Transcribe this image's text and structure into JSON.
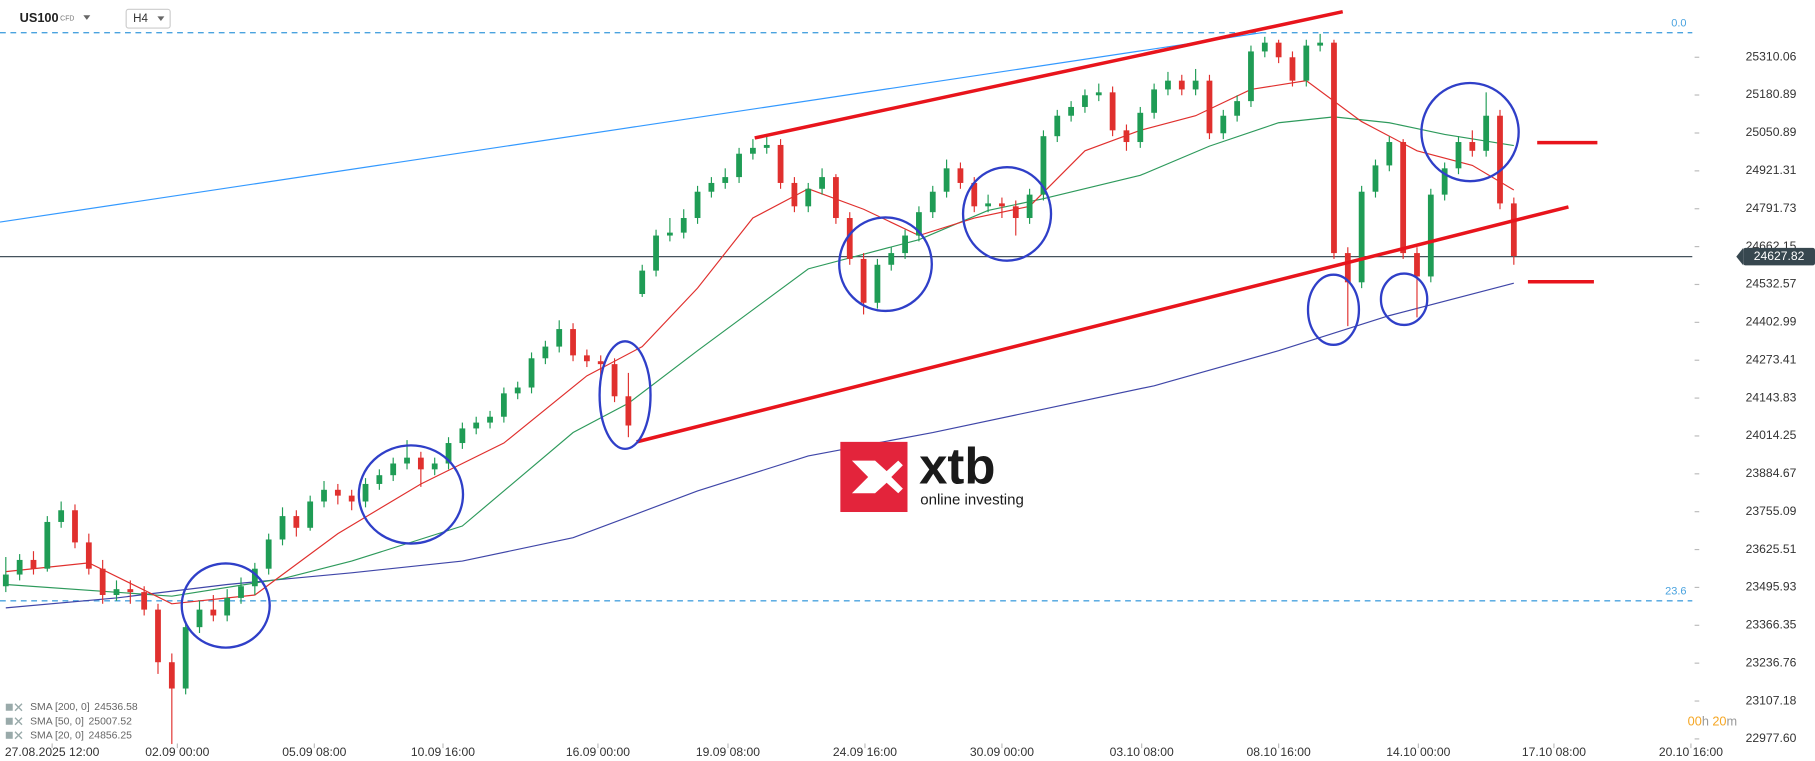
{
  "toolbar": {
    "symbol": "US100",
    "instrument": "CFD",
    "timeframe": "H4"
  },
  "logo": {
    "name": "xtb",
    "tagline": "online investing"
  },
  "timer": [
    "00",
    "h",
    "20",
    "m"
  ],
  "chart_data": {
    "type": "candlestick",
    "up_color": "#1f9c55",
    "down_color": "#e0302e",
    "grid": false,
    "xlim": [
      -0.42,
      121.9
    ],
    "ylim": [
      22946,
      25506
    ],
    "yticks": [
      25310.06,
      25180.89,
      25050.89,
      24921.31,
      24791.73,
      24662.15,
      24532.57,
      24402.99,
      24273.41,
      24143.83,
      24014.25,
      23884.67,
      23755.09,
      23625.51,
      23495.93,
      23366.35,
      23236.76,
      23107.18,
      {
        "value": 22977.6,
        "label": "22977.60"
      }
    ],
    "xticks": [
      {
        "value": 3.35,
        "label": "27.08.2025  12:00"
      },
      {
        "value": 12.4,
        "label": "02.09 00:00"
      },
      {
        "value": 22.3,
        "label": "05.09 08:00"
      },
      {
        "value": 31.6,
        "label": "10.09 16:00"
      },
      {
        "value": 42.8,
        "label": "16.09 00:00"
      },
      {
        "value": 52.2,
        "label": "19.09 08:00"
      },
      {
        "value": 62.1,
        "label": "24.09 16:00"
      },
      {
        "value": 72.0,
        "label": "30.09 00:00"
      },
      {
        "value": 82.1,
        "label": "03.10 08:00"
      },
      {
        "value": 92.0,
        "label": "08.10 16:00"
      },
      {
        "value": 102.1,
        "label": "14.10 00:00"
      },
      {
        "value": 111.9,
        "label": "17.10 08:00"
      },
      {
        "value": 121.8,
        "label": "20.10 16:00"
      }
    ],
    "current_price": 24627.82,
    "fib_levels": [
      {
        "label": "0.0",
        "price": 25394
      },
      {
        "label": "23.6",
        "price": 23450
      }
    ],
    "open": [
      23500,
      23540,
      23590,
      23560,
      23720,
      23760,
      23650,
      23560,
      23470,
      23490,
      23480,
      23420,
      23240,
      23150,
      23360,
      23420,
      23400,
      23460,
      23500,
      23560,
      23660,
      23740,
      23700,
      23790,
      23830,
      23810,
      23790,
      23850,
      23880,
      23920,
      23940,
      23900,
      23920,
      23990,
      24040,
      24060,
      24080,
      24160,
      24180,
      24280,
      24320,
      24380,
      24290,
      24270,
      24260,
      24150,
      24500,
      24580,
      24700,
      24710,
      24760,
      24850,
      24880,
      24900,
      24980,
      25000,
      25010,
      24880,
      24800,
      24860,
      24900,
      24760,
      24620,
      24470,
      24600,
      24640,
      24700,
      24780,
      24850,
      24930,
      24880,
      24800,
      24810,
      24800,
      24760,
      24840,
      25040,
      25110,
      25140,
      25180,
      25190,
      25060,
      25020,
      25120,
      25200,
      25230,
      25200,
      25230,
      25050,
      25110,
      25160,
      25330,
      25360,
      25310,
      25230,
      25350,
      25360,
      24640,
      24540,
      24850,
      24940,
      25020,
      24640,
      24560,
      24840,
      24930,
      25020,
      24990,
      25110,
      24810
    ],
    "high": [
      23600,
      23610,
      23620,
      23740,
      23790,
      23780,
      23680,
      23590,
      23520,
      23520,
      23500,
      23440,
      23270,
      23380,
      23450,
      23470,
      23490,
      23530,
      23580,
      23680,
      23770,
      23760,
      23810,
      23860,
      23850,
      23830,
      23870,
      23900,
      23940,
      24000,
      23960,
      23940,
      24010,
      24060,
      24080,
      24100,
      24180,
      24200,
      24300,
      24340,
      24410,
      24400,
      24310,
      24290,
      24280,
      24230,
      24600,
      24720,
      24760,
      24790,
      24870,
      24900,
      24930,
      25000,
      25030,
      25040,
      25030,
      24900,
      24880,
      24930,
      24910,
      24780,
      24640,
      24620,
      24660,
      24720,
      24800,
      24870,
      24960,
      24950,
      24900,
      24840,
      24830,
      24820,
      24860,
      25060,
      25130,
      25160,
      25200,
      25220,
      25210,
      25080,
      25140,
      25220,
      25260,
      25250,
      25270,
      25250,
      25130,
      25180,
      25350,
      25380,
      25370,
      25330,
      25370,
      25390,
      25370,
      24660,
      24870,
      24960,
      25040,
      25030,
      24660,
      24860,
      24950,
      25040,
      25060,
      25190,
      25130,
      24830
    ],
    "low": [
      23480,
      23520,
      23540,
      23550,
      23700,
      23630,
      23540,
      23440,
      23450,
      23440,
      23400,
      23200,
      22960,
      23130,
      23340,
      23380,
      23380,
      23440,
      23470,
      23540,
      23640,
      23670,
      23690,
      23770,
      23780,
      23760,
      23770,
      23830,
      23860,
      23900,
      23840,
      23880,
      23900,
      23970,
      24020,
      24040,
      24060,
      24140,
      24160,
      24260,
      24300,
      24270,
      24250,
      24220,
      24130,
      24010,
      24490,
      24560,
      24680,
      24690,
      24740,
      24830,
      24860,
      24880,
      24960,
      24980,
      24860,
      24780,
      24780,
      24840,
      24740,
      24600,
      24430,
      24450,
      24580,
      24620,
      24680,
      24760,
      24830,
      24860,
      24780,
      24780,
      24760,
      24700,
      24740,
      24820,
      25020,
      25090,
      25120,
      25160,
      25040,
      24990,
      25000,
      25100,
      25180,
      25180,
      25180,
      25030,
      25030,
      25090,
      25140,
      25310,
      25290,
      25210,
      25210,
      25330,
      24620,
      24390,
      24520,
      24830,
      24920,
      24620,
      24420,
      24540,
      24820,
      24910,
      24970,
      24970,
      24790,
      24600
    ],
    "close": [
      23540,
      23590,
      23560,
      23720,
      23760,
      23650,
      23560,
      23470,
      23490,
      23480,
      23420,
      23240,
      23150,
      23360,
      23420,
      23400,
      23460,
      23500,
      23560,
      23660,
      23740,
      23700,
      23790,
      23830,
      23810,
      23790,
      23850,
      23880,
      23920,
      23940,
      23900,
      23920,
      23990,
      24040,
      24060,
      24080,
      24160,
      24180,
      24280,
      24320,
      24380,
      24290,
      24270,
      24260,
      24150,
      24050,
      24580,
      24700,
      24710,
      24760,
      24850,
      24880,
      24900,
      24980,
      25000,
      25010,
      24880,
      24800,
      24860,
      24900,
      24760,
      24620,
      24470,
      24600,
      24640,
      24700,
      24780,
      24850,
      24930,
      24880,
      24800,
      24810,
      24800,
      24760,
      24840,
      25040,
      25110,
      25140,
      25180,
      25190,
      25060,
      25020,
      25120,
      25200,
      25230,
      25200,
      25230,
      25050,
      25110,
      25160,
      25330,
      25360,
      25310,
      25230,
      25350,
      25360,
      24640,
      24540,
      24850,
      24940,
      25020,
      24640,
      24560,
      24840,
      24930,
      25020,
      24990,
      25110,
      24810,
      24630
    ],
    "sma": [
      {
        "name": "SMA [200, 0]",
        "last": 24536.58,
        "color": "#3f46a8",
        "x": [
          0,
          8,
          16,
          25,
          33,
          41,
          50,
          58,
          67,
          75,
          83,
          92,
          100,
          109
        ],
        "values": [
          23426,
          23460,
          23506,
          23546,
          23586,
          23666,
          23826,
          23946,
          24026,
          24106,
          24186,
          24306,
          24426,
          24537
        ]
      },
      {
        "name": "SMA [50, 0]",
        "last": 25007.52,
        "color": "#2e9a5c",
        "x": [
          0,
          12,
          20,
          25,
          33,
          41,
          45,
          50,
          58,
          66,
          71,
          75,
          82,
          87,
          92,
          96,
          100,
          104,
          109
        ],
        "values": [
          23506,
          23466,
          23526,
          23586,
          23706,
          24026,
          24126,
          24306,
          24586,
          24686,
          24786,
          24826,
          24906,
          25006,
          25086,
          25106,
          25086,
          25046,
          25008
        ]
      },
      {
        "name": "SMA [20, 0]",
        "last": 24856.25,
        "color": "#e0302e",
        "x": [
          0,
          6,
          12,
          18,
          24,
          30,
          36,
          42,
          46,
          50,
          54,
          58,
          62,
          66,
          70,
          74,
          78,
          82,
          86,
          90,
          94,
          98,
          102,
          106,
          109
        ],
        "values": [
          23550,
          23580,
          23440,
          23470,
          23680,
          23850,
          23990,
          24220,
          24320,
          24520,
          24760,
          24860,
          24790,
          24700,
          24760,
          24800,
          24990,
          25060,
          25110,
          25200,
          25230,
          25090,
          24990,
          24940,
          24856
        ]
      }
    ]
  }
}
